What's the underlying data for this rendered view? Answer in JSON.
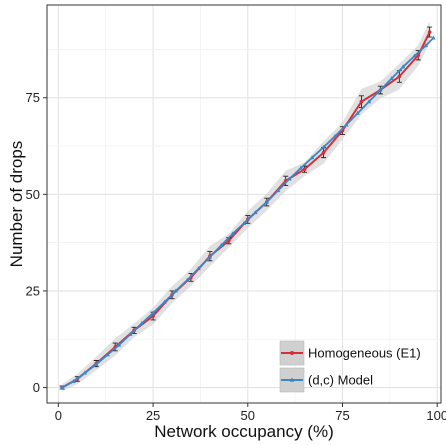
{
  "chart_data": {
    "type": "line",
    "xlabel": "Network occupancy (%)",
    "ylabel": "Number of drops",
    "xlim": [
      -3,
      101
    ],
    "ylim": [
      -4,
      99
    ],
    "x_ticks": [
      0,
      25,
      50,
      75,
      100
    ],
    "x_tick_labels": [
      "0",
      "25",
      "50",
      "75",
      "100"
    ],
    "y_ticks": [
      0,
      25,
      50,
      75
    ],
    "y_tick_labels": [
      "0",
      "25",
      "50",
      "75"
    ],
    "grid": true,
    "legend_position": "bottom-right",
    "series": [
      {
        "name": "Homogeneous (E1)",
        "color": "#d62f3b",
        "marker": "circle",
        "x": [
          1,
          5,
          10,
          15,
          20,
          25,
          30,
          35,
          40,
          45,
          50,
          55,
          60,
          65,
          70,
          75,
          80,
          85,
          90,
          95,
          98
        ],
        "y": [
          0,
          2.2,
          6.2,
          10.5,
          14.8,
          18.5,
          24,
          28.5,
          34,
          38,
          43.5,
          48,
          53.5,
          56.5,
          60.8,
          66.5,
          74,
          77,
          80.5,
          86,
          92
        ],
        "error": [
          0.4,
          0.6,
          0.8,
          1.0,
          0.8,
          1.0,
          1.0,
          1.0,
          1.2,
          0.8,
          1.0,
          1.0,
          1.2,
          0.8,
          1.3,
          1.0,
          1.5,
          1.0,
          1.5,
          1.2,
          1.3
        ]
      },
      {
        "name": "(d,c) Model",
        "color": "#3a86c8",
        "marker": "triangle",
        "x": [
          1,
          4,
          7,
          10,
          13,
          16,
          19,
          22,
          25,
          28,
          31,
          34,
          37,
          40,
          43,
          46,
          49,
          52,
          55,
          58,
          61,
          64,
          67,
          70,
          73,
          76,
          79,
          82,
          85,
          88,
          91,
          94,
          97,
          99
        ],
        "y": [
          0,
          1.6,
          3.8,
          6.0,
          8.5,
          11.0,
          13.8,
          16.6,
          19.3,
          22.1,
          25.0,
          27.8,
          30.8,
          33.8,
          36.8,
          39.8,
          42.5,
          45.3,
          48.0,
          51.0,
          54.0,
          56.8,
          59.5,
          62.2,
          65.0,
          68.0,
          71.0,
          74.0,
          77.0,
          80.0,
          83.0,
          85.8,
          88.5,
          90.5
        ]
      }
    ]
  }
}
